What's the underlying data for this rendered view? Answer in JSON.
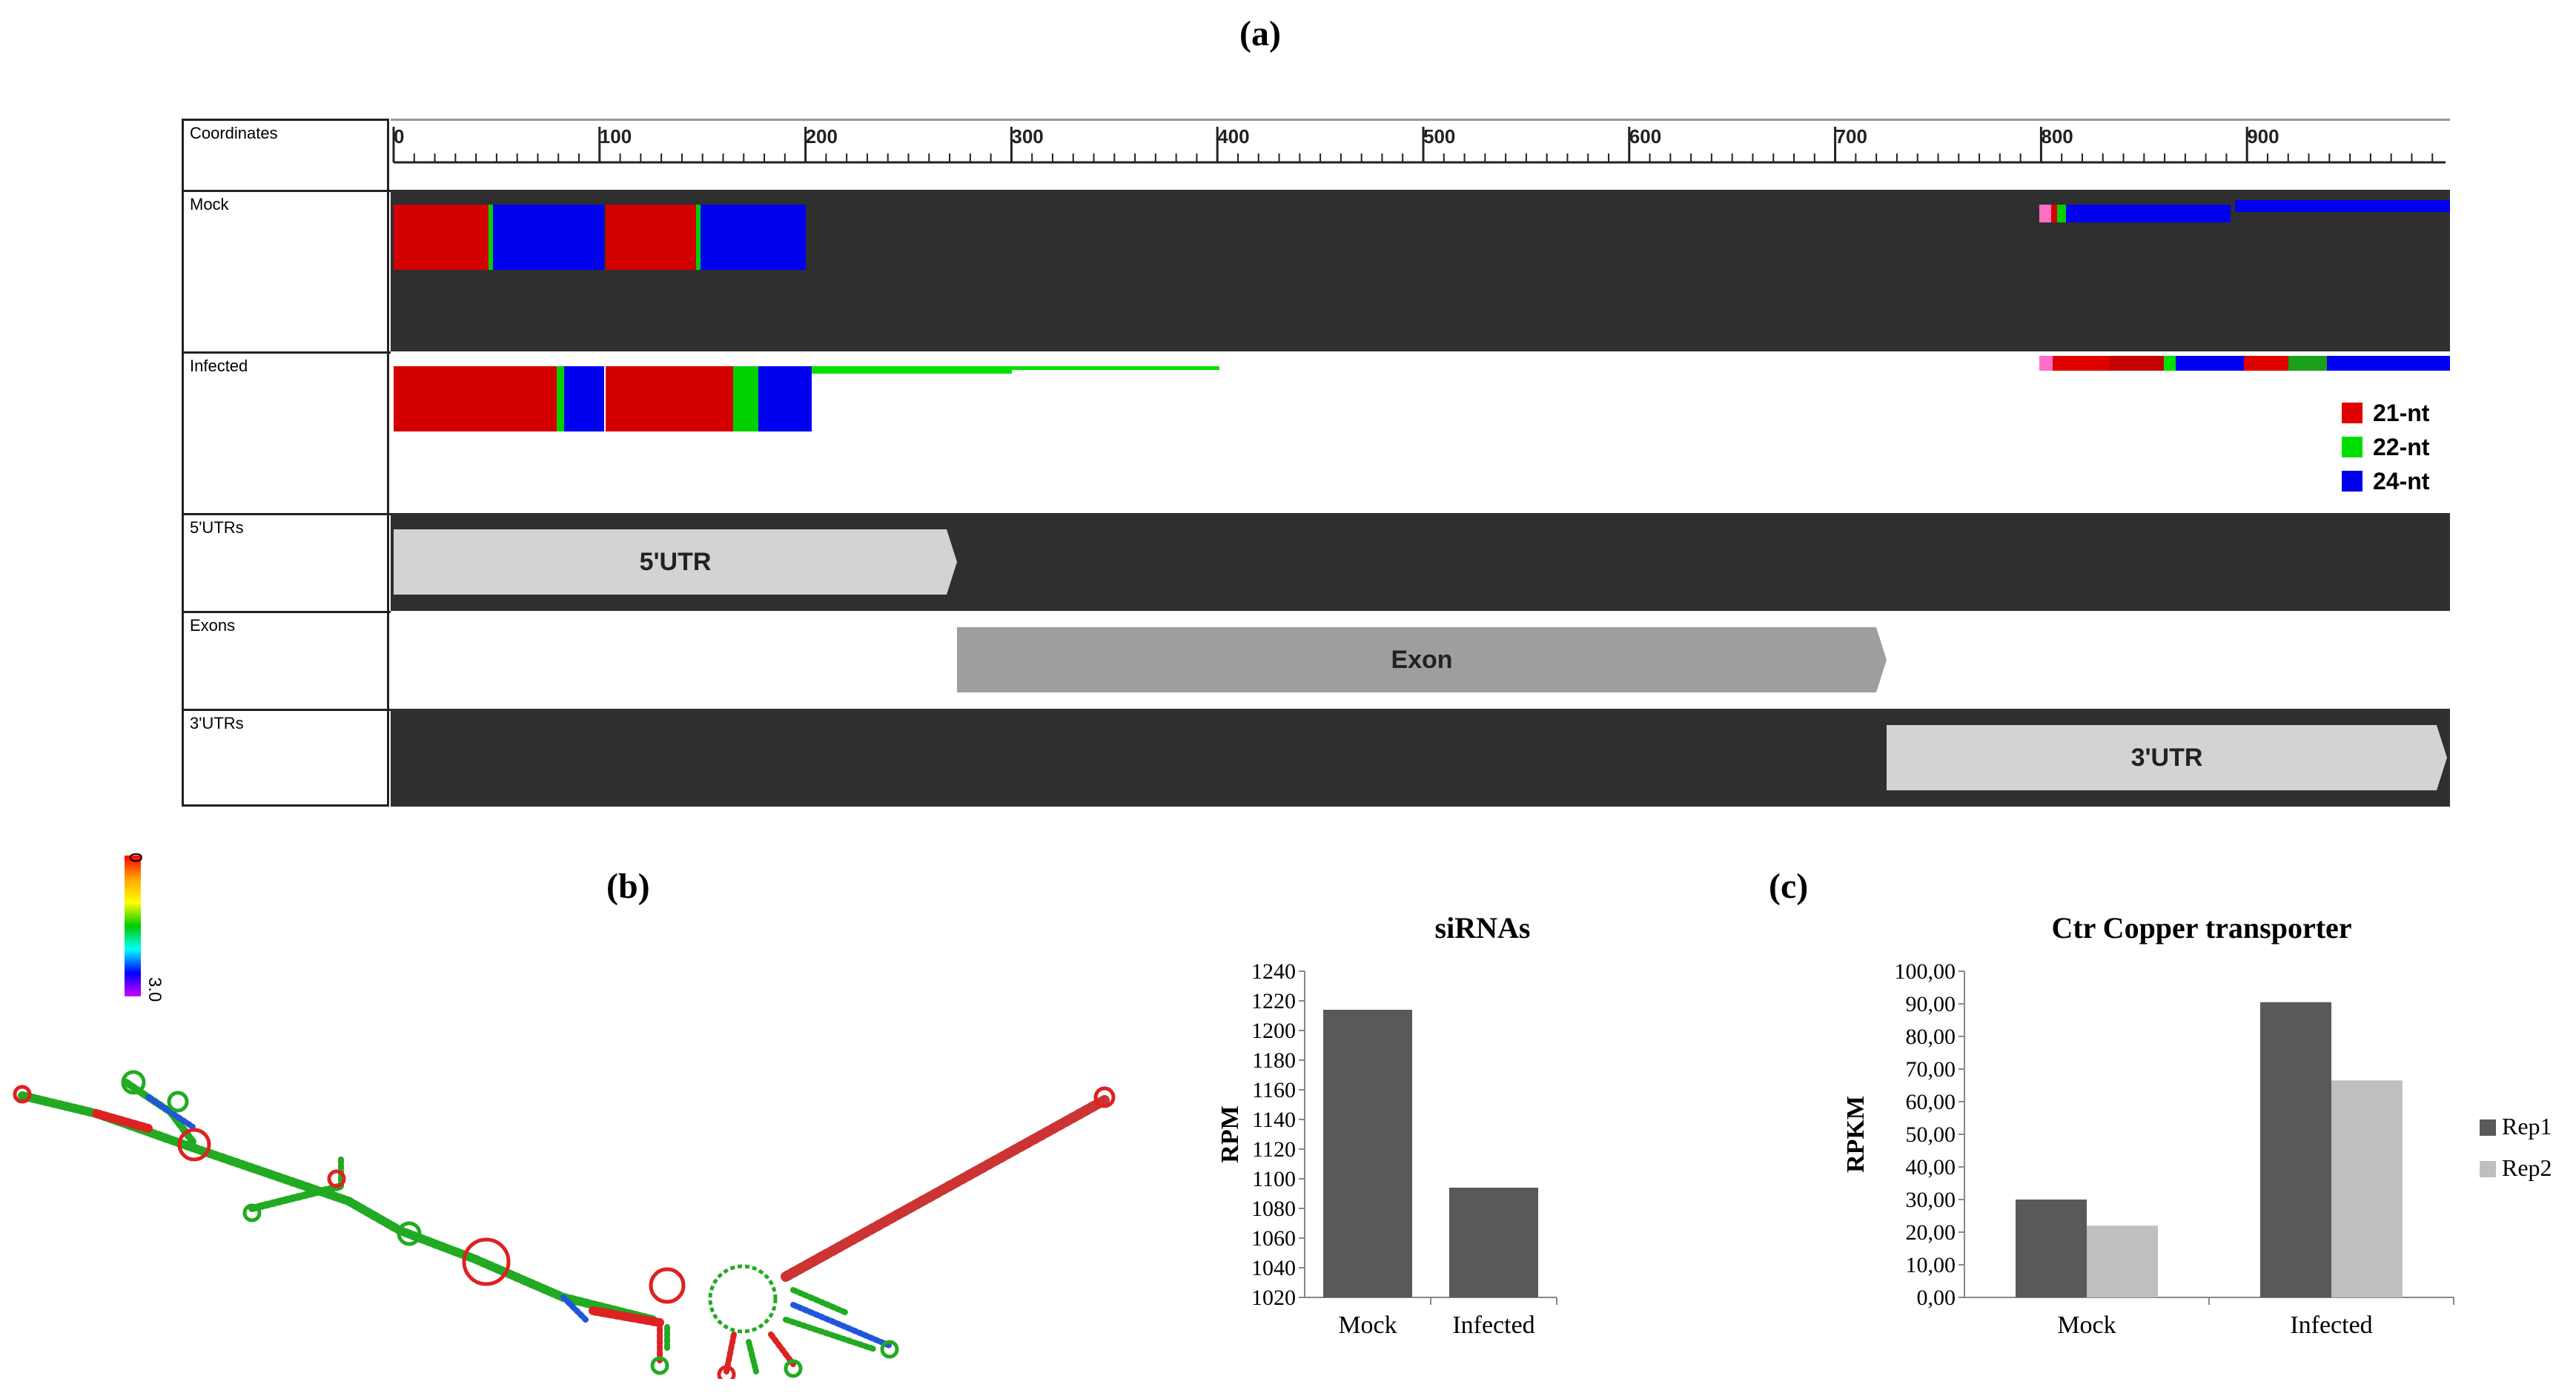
{
  "panels": {
    "a": "(a)",
    "b": "(b)",
    "c": "(c)"
  },
  "browser": {
    "tracks": [
      "Coordinates",
      "Mock",
      "Infected",
      "5'UTRs",
      "Exons",
      "3'UTRs"
    ],
    "ruler_ticks": [
      "0",
      "100",
      "200",
      "300",
      "400",
      "500",
      "600",
      "700",
      "800",
      "900"
    ],
    "features": {
      "utr5": "5'UTR",
      "exon": "Exon",
      "utr3": "3'UTR"
    },
    "legend": [
      {
        "label": "21-nt",
        "color": "#e00000"
      },
      {
        "label": "22-nt",
        "color": "#00e000"
      },
      {
        "label": "24-nt",
        "color": "#0000ee"
      }
    ]
  },
  "colorbar": {
    "top": "0",
    "bottom": "3.0"
  },
  "chart_data": [
    {
      "type": "bar",
      "title": "siRNAs",
      "ylabel": "RPM",
      "categories": [
        "Mock",
        "Infected"
      ],
      "values": [
        1214,
        1094
      ],
      "ylim": [
        1020,
        1240
      ],
      "yticks": [
        "1020",
        "1040",
        "1060",
        "1080",
        "1100",
        "1120",
        "1140",
        "1160",
        "1180",
        "1200",
        "1220",
        "1240"
      ],
      "color": "#595959"
    },
    {
      "type": "bar",
      "title": "Ctr Copper transporter",
      "ylabel": "RPKM",
      "categories": [
        "Mock",
        "Infected"
      ],
      "series": [
        {
          "name": "Rep1",
          "values": [
            30.0,
            90.5
          ],
          "color": "#595959"
        },
        {
          "name": "Rep2",
          "values": [
            22.0,
            66.5
          ],
          "color": "#bfbfbf"
        }
      ],
      "ylim": [
        0,
        100
      ],
      "yticks": [
        "0,00",
        "10,00",
        "20,00",
        "30,00",
        "40,00",
        "50,00",
        "60,00",
        "70,00",
        "80,00",
        "90,00",
        "100,00"
      ],
      "legend_position": "right"
    }
  ]
}
